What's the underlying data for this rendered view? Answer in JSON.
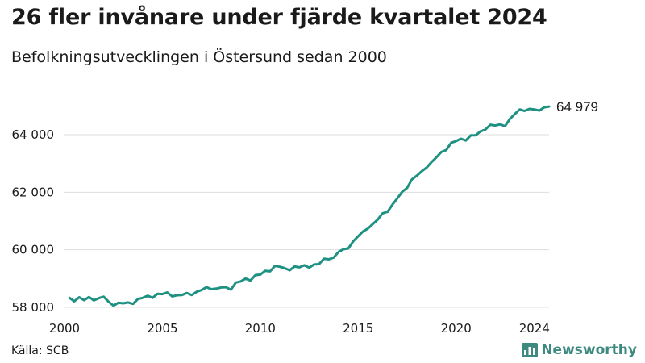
{
  "title": "26 fler invånare under fjärde kvartalet 2024",
  "subtitle": "Befolkningsutvecklingen i Östersund sedan 2000",
  "source": "Källa: SCB",
  "brand": {
    "name": "Newsworthy",
    "icon": "bar-chart-icon",
    "color": "#3e8a80"
  },
  "colors": {
    "line": "#1f9182",
    "grid": "#dddddd"
  },
  "chart_data": {
    "type": "line",
    "title": "26 fler invånare under fjärde kvartalet 2024",
    "subtitle": "Befolkningsutvecklingen i Östersund sedan 2000",
    "xlabel": "",
    "ylabel": "",
    "xlim": [
      2000,
      2024.75
    ],
    "ylim": [
      58000,
      65600
    ],
    "grid": true,
    "legend": "none",
    "x_ticks": [
      2000,
      2005,
      2010,
      2015,
      2020,
      2024
    ],
    "x_tick_labels": [
      "2000",
      "2005",
      "2010",
      "2015",
      "2020",
      "2024"
    ],
    "y_ticks": [
      58000,
      60000,
      62000,
      64000
    ],
    "y_tick_labels": [
      "58 000",
      "60 000",
      "62 000",
      "64 000"
    ],
    "end_label": "64 979",
    "series": [
      {
        "x": [
          2000.25,
          2000.5,
          2000.75,
          2001,
          2001.25,
          2001.5,
          2001.75,
          2002,
          2002.25,
          2002.5,
          2002.75,
          2003,
          2003.25,
          2003.5,
          2003.75,
          2004,
          2004.25,
          2004.5,
          2004.75,
          2005,
          2005.25,
          2005.5,
          2005.75,
          2006,
          2006.25,
          2006.5,
          2006.75,
          2007,
          2007.25,
          2007.5,
          2007.75,
          2008,
          2008.25,
          2008.5,
          2008.75,
          2009,
          2009.25,
          2009.5,
          2009.75,
          2010,
          2010.25,
          2010.5,
          2010.75,
          2011,
          2011.25,
          2011.5,
          2011.75,
          2012,
          2012.25,
          2012.5,
          2012.75,
          2013,
          2013.25,
          2013.5,
          2013.75,
          2014,
          2014.25,
          2014.5,
          2014.75,
          2015,
          2015.25,
          2015.5,
          2015.75,
          2016,
          2016.25,
          2016.5,
          2016.75,
          2017,
          2017.25,
          2017.5,
          2017.75,
          2018,
          2018.25,
          2018.5,
          2018.75,
          2019,
          2019.25,
          2019.5,
          2019.75,
          2020,
          2020.25,
          2020.5,
          2020.75,
          2021,
          2021.25,
          2021.5,
          2021.75,
          2022,
          2022.25,
          2022.5,
          2022.75,
          2023,
          2023.25,
          2023.5,
          2023.75,
          2024,
          2024.25,
          2024.5,
          2024.75
        ],
        "values": [
          58330,
          58210,
          58350,
          58250,
          58360,
          58240,
          58320,
          58370,
          58200,
          58060,
          58160,
          58140,
          58170,
          58120,
          58290,
          58330,
          58400,
          58330,
          58470,
          58460,
          58520,
          58380,
          58420,
          58430,
          58500,
          58430,
          58540,
          58600,
          58700,
          58630,
          58650,
          58690,
          58700,
          58610,
          58860,
          58900,
          59000,
          58930,
          59120,
          59140,
          59270,
          59250,
          59440,
          59410,
          59360,
          59290,
          59420,
          59390,
          59460,
          59380,
          59490,
          59500,
          59690,
          59670,
          59730,
          59930,
          60020,
          60050,
          60300,
          60470,
          60640,
          60740,
          60900,
          61050,
          61270,
          61320,
          61570,
          61790,
          62020,
          62150,
          62450,
          62580,
          62730,
          62860,
          63050,
          63220,
          63400,
          63470,
          63720,
          63780,
          63860,
          63800,
          63980,
          63980,
          64120,
          64180,
          64350,
          64320,
          64360,
          64300,
          64550,
          64720,
          64880,
          64830,
          64900,
          64880,
          64840,
          64953,
          64979
        ]
      }
    ]
  }
}
